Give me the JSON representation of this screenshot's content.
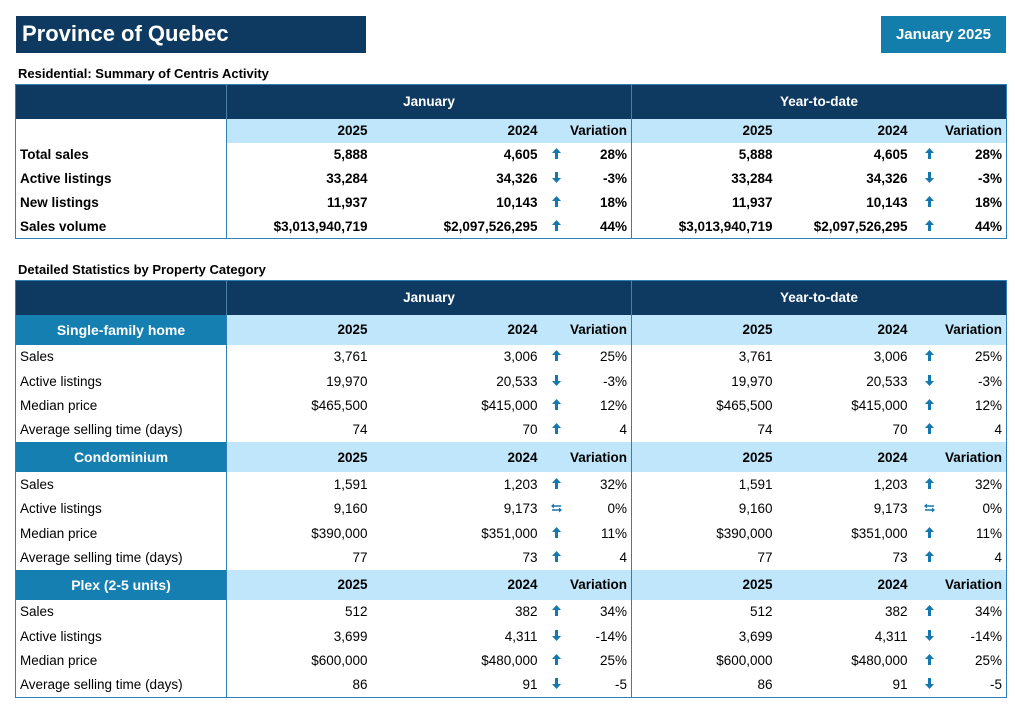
{
  "header": {
    "title": "Province of Quebec",
    "date": "January 2025"
  },
  "summary": {
    "title": "Residential: Summary of Centris Activity",
    "period1": "January",
    "period2": "Year-to-date",
    "columns": [
      "2025",
      "2024",
      "Variation"
    ],
    "rows": [
      {
        "label": "Total sales",
        "m25": "5,888",
        "m24": "4,605",
        "mdir": "up",
        "mvar": "28%",
        "y25": "5,888",
        "y24": "4,605",
        "ydir": "up",
        "yvar": "28%"
      },
      {
        "label": "Active listings",
        "m25": "33,284",
        "m24": "34,326",
        "mdir": "down",
        "mvar": "-3%",
        "y25": "33,284",
        "y24": "34,326",
        "ydir": "down",
        "yvar": "-3%"
      },
      {
        "label": "New listings",
        "m25": "11,937",
        "m24": "10,143",
        "mdir": "up",
        "mvar": "18%",
        "y25": "11,937",
        "y24": "10,143",
        "ydir": "up",
        "yvar": "18%"
      },
      {
        "label": "Sales volume",
        "m25": "$3,013,940,719",
        "m24": "$2,097,526,295",
        "mdir": "up",
        "mvar": "44%",
        "y25": "$3,013,940,719",
        "y24": "$2,097,526,295",
        "ydir": "up",
        "yvar": "44%"
      }
    ]
  },
  "detailed": {
    "title": "Detailed Statistics by Property Category",
    "period1": "January",
    "period2": "Year-to-date",
    "columns": [
      "2025",
      "2024",
      "Variation"
    ],
    "categories": [
      {
        "name": "Single-family home",
        "rows": [
          {
            "label": "Sales",
            "m25": "3,761",
            "m24": "3,006",
            "mdir": "up",
            "mvar": "25%",
            "y25": "3,761",
            "y24": "3,006",
            "ydir": "up",
            "yvar": "25%"
          },
          {
            "label": "Active listings",
            "m25": "19,970",
            "m24": "20,533",
            "mdir": "down",
            "mvar": "-3%",
            "y25": "19,970",
            "y24": "20,533",
            "ydir": "down",
            "yvar": "-3%"
          },
          {
            "label": "Median price",
            "m25": "$465,500",
            "m24": "$415,000",
            "mdir": "up",
            "mvar": "12%",
            "y25": "$465,500",
            "y24": "$415,000",
            "ydir": "up",
            "yvar": "12%"
          },
          {
            "label": "Average selling time (days)",
            "m25": "74",
            "m24": "70",
            "mdir": "up",
            "mvar": "4",
            "y25": "74",
            "y24": "70",
            "ydir": "up",
            "yvar": "4"
          }
        ]
      },
      {
        "name": "Condominium",
        "rows": [
          {
            "label": "Sales",
            "m25": "1,591",
            "m24": "1,203",
            "mdir": "up",
            "mvar": "32%",
            "y25": "1,591",
            "y24": "1,203",
            "ydir": "up",
            "yvar": "32%"
          },
          {
            "label": "Active listings",
            "m25": "9,160",
            "m24": "9,173",
            "mdir": "same",
            "mvar": "0%",
            "y25": "9,160",
            "y24": "9,173",
            "ydir": "same",
            "yvar": "0%"
          },
          {
            "label": "Median price",
            "m25": "$390,000",
            "m24": "$351,000",
            "mdir": "up",
            "mvar": "11%",
            "y25": "$390,000",
            "y24": "$351,000",
            "ydir": "up",
            "yvar": "11%"
          },
          {
            "label": "Average selling time (days)",
            "m25": "77",
            "m24": "73",
            "mdir": "up",
            "mvar": "4",
            "y25": "77",
            "y24": "73",
            "ydir": "up",
            "yvar": "4"
          }
        ]
      },
      {
        "name": "Plex (2-5 units)",
        "rows": [
          {
            "label": "Sales",
            "m25": "512",
            "m24": "382",
            "mdir": "up",
            "mvar": "34%",
            "y25": "512",
            "y24": "382",
            "ydir": "up",
            "yvar": "34%"
          },
          {
            "label": "Active listings",
            "m25": "3,699",
            "m24": "4,311",
            "mdir": "down",
            "mvar": "-14%",
            "y25": "3,699",
            "y24": "4,311",
            "ydir": "down",
            "yvar": "-14%"
          },
          {
            "label": "Median price",
            "m25": "$600,000",
            "m24": "$480,000",
            "mdir": "up",
            "mvar": "25%",
            "y25": "$600,000",
            "y24": "$480,000",
            "ydir": "up",
            "yvar": "25%"
          },
          {
            "label": "Average selling time (days)",
            "m25": "86",
            "m24": "91",
            "mdir": "down",
            "mvar": "-5",
            "y25": "86",
            "y24": "91",
            "ydir": "down",
            "yvar": "-5"
          }
        ]
      }
    ]
  },
  "icons": {
    "up": "arrow-up-icon",
    "down": "arrow-down-icon",
    "same": "arrows-left-right-icon"
  },
  "colors": {
    "navy": "#0e3a61",
    "accent": "#137eab",
    "light": "#bfe6fa"
  }
}
